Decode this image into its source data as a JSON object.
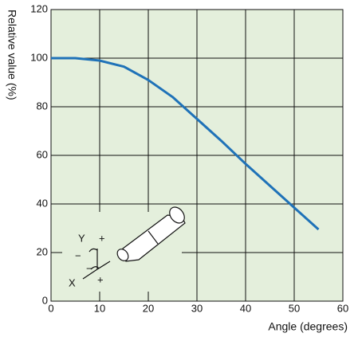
{
  "chart_data": {
    "type": "line",
    "x_label": "Angle (degrees)",
    "y_label": "Relative value (%)",
    "x": [
      0,
      5,
      10,
      15,
      20,
      25,
      30,
      35,
      40,
      45,
      50,
      55
    ],
    "series": [
      {
        "name": "Relative value",
        "color": "#1f72b8",
        "values": [
          100,
          100,
          99,
          96.5,
          91,
          84,
          75,
          66,
          56.5,
          47.5,
          38.5,
          29.5
        ]
      }
    ],
    "xlim": [
      0,
      60
    ],
    "xticks": [
      0,
      10,
      20,
      30,
      40,
      50,
      60
    ],
    "ylim": [
      0,
      120
    ],
    "yticks": [
      0,
      20,
      40,
      60,
      80,
      100,
      120
    ],
    "grid": true,
    "background": "#e4efdc",
    "icon_labels": [
      "Y",
      "+",
      "−",
      "−",
      "X",
      "+"
    ]
  }
}
